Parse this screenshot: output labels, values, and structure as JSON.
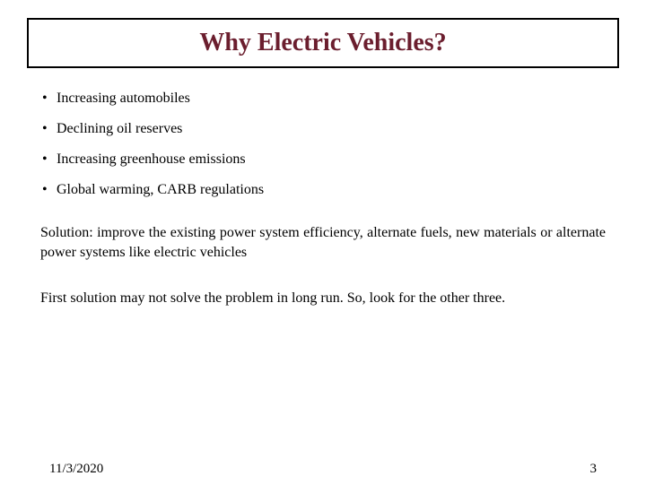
{
  "title": {
    "text": "Why Electric Vehicles?",
    "color": "#6b1e2e",
    "fontsize": 28,
    "border_color": "#000000"
  },
  "bullets": [
    "Increasing automobiles",
    "Declining oil reserves",
    "Increasing greenhouse emissions",
    "Global warming, CARB regulations"
  ],
  "paragraphs": [
    "Solution: improve the existing power system efficiency, alternate fuels, new materials or alternate power systems like electric vehicles",
    "First solution may not solve the problem in long run. So, look for the other three."
  ],
  "footer": {
    "date": "11/3/2020",
    "page_number": "3"
  },
  "styling": {
    "background_color": "#ffffff",
    "text_color": "#000000",
    "body_fontsize": 16,
    "font_family": "Times New Roman"
  }
}
